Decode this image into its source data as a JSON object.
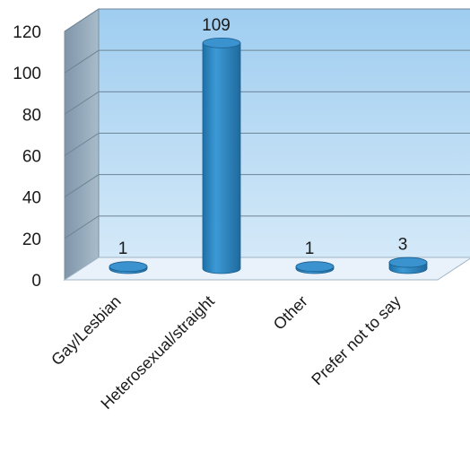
{
  "chart_data": {
    "type": "bar",
    "style": "3d-cylinder",
    "title": "",
    "xlabel": "",
    "ylabel": "",
    "categories": [
      "Gay/Lesbian",
      "Heterosexual/straight",
      "Other",
      "Prefer not to say"
    ],
    "values": [
      1,
      109,
      1,
      3
    ],
    "data_labels": [
      "1",
      "109",
      "1",
      "3"
    ],
    "ylim": [
      0,
      120
    ],
    "yticks": [
      "0",
      "20",
      "40",
      "60",
      "80",
      "100",
      "120"
    ],
    "grid": true,
    "legend": "none",
    "colors": {
      "bar": "#2b86c2",
      "back_wall": "#a9d3f1",
      "side_wall": "#8fa3b4",
      "floor": "#e9f2fb",
      "grid": "#6f8596"
    }
  }
}
